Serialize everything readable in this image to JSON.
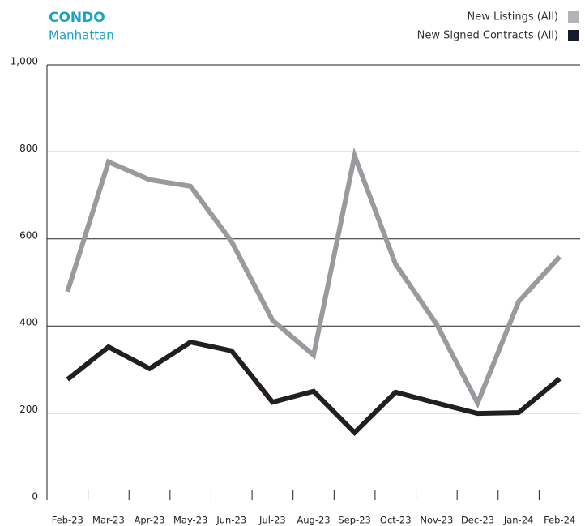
{
  "chart_data": {
    "type": "line",
    "title": "CONDO",
    "subtitle": "Manhattan",
    "categories": [
      "Feb-23",
      "Mar-23",
      "Apr-23",
      "May-23",
      "Jun-23",
      "Jul-23",
      "Aug-23",
      "Sep-23",
      "Oct-23",
      "Nov-23",
      "Dec-23",
      "Jan-24",
      "Feb-24"
    ],
    "series": [
      {
        "name": "New Listings (All)",
        "color": "#9a9a9e",
        "legend_color": "#b3b3b8",
        "values": [
          479,
          777,
          736,
          721,
          594,
          413,
          333,
          791,
          542,
          404,
          223,
          456,
          559
        ]
      },
      {
        "name": "New Signed Contracts (All)",
        "color": "#231f20",
        "legend_color": "#151a2e",
        "values": [
          277,
          352,
          302,
          363,
          343,
          225,
          250,
          155,
          248,
          223,
          199,
          201,
          279
        ]
      }
    ],
    "ylim": [
      0,
      1000
    ],
    "yticks": [
      0,
      200,
      400,
      600,
      800,
      {
        "value": 1000,
        "label": "1,000"
      }
    ],
    "grid": true,
    "legend": "top-right"
  }
}
